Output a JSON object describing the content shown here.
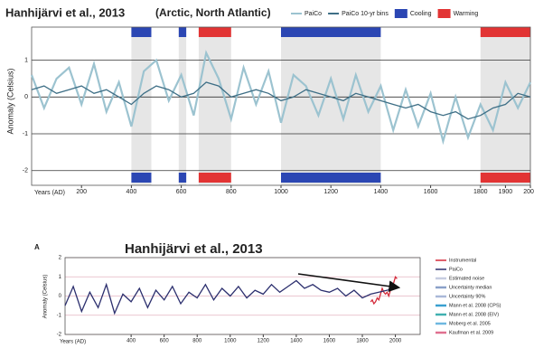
{
  "chart_data": [
    {
      "type": "line",
      "title": "Hanhijärvi et al., 2013",
      "subtitle": "(Arctic, North Atlantic)",
      "x_label": "Years (AD)",
      "y_label": "Anomaly (Celsius)",
      "xlim": [
        0,
        2000
      ],
      "ylim": [
        -2.4,
        1.9
      ],
      "xticks": [
        200,
        400,
        600,
        800,
        1000,
        1200,
        1400,
        1600,
        1800,
        1900,
        2000
      ],
      "yticks": [
        -2,
        -1,
        0,
        1
      ],
      "grid": true,
      "x": [
        0,
        50,
        100,
        150,
        200,
        250,
        300,
        350,
        400,
        450,
        500,
        550,
        600,
        650,
        700,
        750,
        800,
        850,
        900,
        950,
        1000,
        1050,
        1100,
        1150,
        1200,
        1250,
        1300,
        1350,
        1400,
        1450,
        1500,
        1550,
        1600,
        1650,
        1700,
        1750,
        1800,
        1850,
        1900,
        1950,
        2000
      ],
      "series": [
        {
          "name": "PaiCo",
          "color": "#9cc3d0",
          "values": [
            0.6,
            -0.3,
            0.5,
            0.8,
            -0.2,
            0.9,
            -0.4,
            0.4,
            -0.8,
            0.7,
            1.0,
            -0.1,
            0.6,
            -0.5,
            1.2,
            0.5,
            -0.6,
            0.8,
            -0.2,
            0.7,
            -0.7,
            0.6,
            0.3,
            -0.5,
            0.5,
            -0.6,
            0.6,
            -0.4,
            0.3,
            -0.9,
            0.2,
            -0.8,
            0.1,
            -1.2,
            0.0,
            -1.1,
            -0.2,
            -0.9,
            0.4,
            -0.3,
            0.4
          ]
        },
        {
          "name": "PaiCo 10-yr bins",
          "color": "#3e6f86",
          "values": [
            0.2,
            0.3,
            0.1,
            0.2,
            0.3,
            0.1,
            0.2,
            0.0,
            -0.2,
            0.1,
            0.3,
            0.2,
            0.0,
            0.1,
            0.4,
            0.3,
            0.0,
            0.1,
            0.2,
            0.1,
            -0.1,
            0.0,
            0.2,
            0.1,
            0.0,
            -0.1,
            0.1,
            0.0,
            -0.1,
            -0.2,
            -0.3,
            -0.2,
            -0.4,
            -0.5,
            -0.4,
            -0.6,
            -0.5,
            -0.3,
            -0.2,
            0.1,
            0.0
          ]
        }
      ],
      "periods": [
        {
          "name": "Cooling",
          "color": "#2b46b3",
          "spans": [
            [
              400,
              480
            ],
            [
              590,
              620
            ],
            [
              1000,
              1400
            ]
          ]
        },
        {
          "name": "Warming",
          "color": "#e23434",
          "spans": [
            [
              670,
              800
            ],
            [
              1800,
              2000
            ]
          ]
        }
      ]
    },
    {
      "type": "line",
      "panel": "A",
      "title": "Hanhijärvi et al., 2013",
      "x_label": "Years (AD)",
      "y_label": "Anomaly (Celsius)",
      "xlim": [
        0,
        2150
      ],
      "ylim": [
        -2,
        2
      ],
      "xticks": [
        400,
        600,
        800,
        1000,
        1200,
        1400,
        1600,
        1800,
        2000
      ],
      "yticks": [
        -2,
        -1,
        0,
        1,
        2
      ],
      "grid": true,
      "series": [
        {
          "name": "Instrumental",
          "color": "#d42a3a",
          "x": [
            1850,
            1860,
            1870,
            1880,
            1890,
            1900,
            1910,
            1920,
            1930,
            1940,
            1950,
            1960,
            1970,
            1980,
            1990,
            2000,
            2010
          ],
          "values": [
            -0.3,
            -0.2,
            -0.4,
            -0.3,
            -0.1,
            -0.2,
            0.1,
            0.4,
            0.2,
            0.1,
            0.2,
            0.0,
            0.3,
            0.5,
            0.7,
            1.0,
            0.9
          ]
        },
        {
          "name": "PaiCo",
          "color": "#2c2f6e",
          "x": [
            0,
            50,
            100,
            150,
            200,
            250,
            300,
            350,
            400,
            450,
            500,
            550,
            600,
            650,
            700,
            750,
            800,
            850,
            900,
            950,
            1000,
            1050,
            1100,
            1150,
            1200,
            1250,
            1300,
            1350,
            1400,
            1450,
            1500,
            1550,
            1600,
            1650,
            1700,
            1750,
            1800,
            1850,
            1900,
            1950,
            2000
          ],
          "values": [
            -0.5,
            0.5,
            -0.8,
            0.2,
            -0.6,
            0.6,
            -0.9,
            0.1,
            -0.3,
            0.4,
            -0.6,
            0.3,
            -0.2,
            0.5,
            -0.4,
            0.2,
            -0.1,
            0.6,
            -0.2,
            0.4,
            0.0,
            0.5,
            -0.1,
            0.3,
            0.1,
            0.6,
            0.2,
            0.5,
            0.8,
            0.4,
            0.6,
            0.3,
            0.2,
            0.4,
            0.0,
            0.3,
            -0.1,
            0.1,
            0.2,
            0.3,
            0.4
          ]
        }
      ],
      "legend_extra": [
        {
          "name": "Estimated noise",
          "color": "#c6cde0"
        },
        {
          "name": "Uncertainty median",
          "color": "#8aa0c8"
        },
        {
          "name": "Uncertainty 90%",
          "color": "#aab8d8"
        },
        {
          "name": "Mann et al. 2008 (CPS)",
          "color": "#3aa0d0"
        },
        {
          "name": "Mann et al. 2008 (EIV)",
          "color": "#40b0b0"
        },
        {
          "name": "Moberg et al. 2005",
          "color": "#6fb8e0"
        },
        {
          "name": "Kaufman et al. 2009",
          "color": "#e07090"
        }
      ]
    }
  ]
}
